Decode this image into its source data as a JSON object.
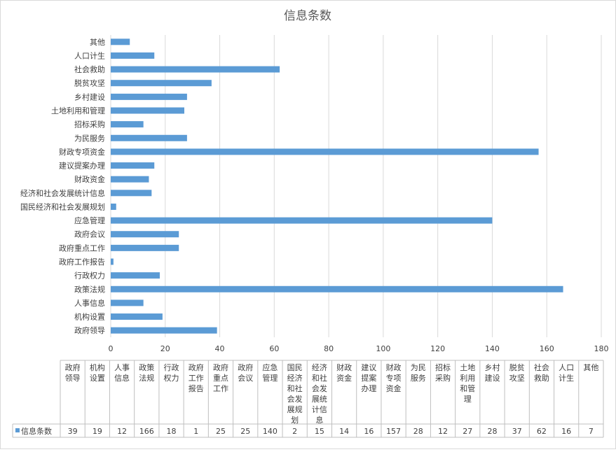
{
  "chart_data": {
    "type": "bar",
    "orientation": "horizontal",
    "title": "信息条数",
    "categories": [
      "政府领导",
      "机构设置",
      "人事信息",
      "政策法规",
      "行政权力",
      "政府工作报告",
      "政府重点工作",
      "政府会议",
      "应急管理",
      "国民经济和社会发展规划",
      "经济和社会发展统计信息",
      "财政资金",
      "建议提案办理",
      "财政专项资金",
      "为民服务",
      "招标采购",
      "土地利用和管理",
      "乡村建设",
      "脱贫攻坚",
      "社会救助",
      "人口计生",
      "其他"
    ],
    "series": [
      {
        "name": "信息条数",
        "values": [
          39,
          19,
          12,
          166,
          18,
          1,
          25,
          25,
          140,
          2,
          15,
          14,
          16,
          157,
          28,
          12,
          27,
          28,
          37,
          62,
          16,
          7
        ]
      }
    ],
    "xlim": [
      0,
      180
    ],
    "x_ticks": [
      "0",
      "20",
      "40",
      "60",
      "80",
      "100",
      "120",
      "140",
      "160",
      "180"
    ],
    "grid": true,
    "legend": "data-table-left",
    "colors": {
      "bar": "#5B9BD5",
      "grid": "#D9D9D9",
      "text": "#404040",
      "title": "#595959",
      "table_border": "#BFBFBF"
    },
    "table_headers": [
      "政府\n领导",
      "机构\n设置",
      "人事\n信息",
      "政策\n法规",
      "行政\n权力",
      "政府\n工作\n报告",
      "政府\n重点\n工作",
      "政府\n会议",
      "应急\n管理",
      "国民\n经济\n和社\n会发\n展规\n划",
      "经济\n和社\n会发\n展统\n计信\n息",
      "财政\n资金",
      "建议\n提案\n办理",
      "财政\n专项\n资金",
      "为民\n服务",
      "招标\n采购",
      "土地\n利用\n和管\n理",
      "乡村\n建设",
      "脱贫\n攻坚",
      "社会\n救助",
      "人口\n计生",
      "其他"
    ]
  }
}
